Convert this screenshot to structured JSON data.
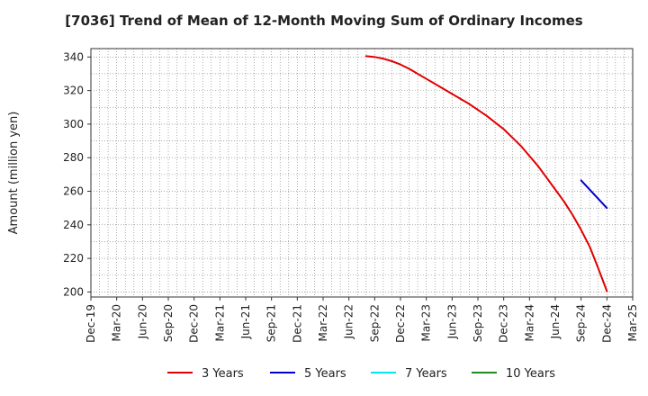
{
  "chart_data": {
    "type": "line",
    "title": "[7036]  Trend of Mean of 12-Month Moving Sum of Ordinary Incomes",
    "ylabel": "Amount (million yen)",
    "xlabel": "",
    "x_ticks": [
      "Dec-19",
      "Mar-20",
      "Jun-20",
      "Sep-20",
      "Dec-20",
      "Mar-21",
      "Jun-21",
      "Sep-21",
      "Dec-21",
      "Mar-22",
      "Jun-22",
      "Sep-22",
      "Dec-22",
      "Mar-23",
      "Jun-23",
      "Sep-23",
      "Dec-23",
      "Mar-24",
      "Jun-24",
      "Sep-24",
      "Dec-24",
      "Mar-25"
    ],
    "y_ticks": [
      200,
      220,
      240,
      260,
      280,
      300,
      320,
      340
    ],
    "ylim": [
      197,
      345
    ],
    "grid": true,
    "legend_position": "bottom",
    "series": [
      {
        "name": "3 Years",
        "color": "#e00000",
        "points": [
          [
            "Aug-22",
            340.5
          ],
          [
            "Sep-22",
            340.0
          ],
          [
            "Oct-22",
            339.0
          ],
          [
            "Nov-22",
            337.5
          ],
          [
            "Dec-22",
            335.5
          ],
          [
            "Jan-23",
            333.0
          ],
          [
            "Feb-23",
            330.0
          ],
          [
            "Mar-23",
            327.0
          ],
          [
            "Apr-23",
            324.0
          ],
          [
            "May-23",
            321.0
          ],
          [
            "Jun-23",
            318.0
          ],
          [
            "Jul-23",
            315.0
          ],
          [
            "Aug-23",
            312.0
          ],
          [
            "Sep-23",
            308.5
          ],
          [
            "Oct-23",
            305.0
          ],
          [
            "Nov-23",
            301.0
          ],
          [
            "Dec-23",
            297.0
          ],
          [
            "Jan-24",
            292.0
          ],
          [
            "Feb-24",
            287.0
          ],
          [
            "Mar-24",
            281.0
          ],
          [
            "Apr-24",
            275.0
          ],
          [
            "May-24",
            268.0
          ],
          [
            "Jun-24",
            261.0
          ],
          [
            "Jul-24",
            254.0
          ],
          [
            "Aug-24",
            246.0
          ],
          [
            "Sep-24",
            237.0
          ],
          [
            "Oct-24",
            227.0
          ],
          [
            "Nov-24",
            214.0
          ],
          [
            "Dec-24",
            200.5
          ]
        ]
      },
      {
        "name": "5 Years",
        "color": "#0000cc",
        "points": [
          [
            "Sep-24",
            266.5
          ],
          [
            "Oct-24",
            261.0
          ],
          [
            "Nov-24",
            255.5
          ],
          [
            "Dec-24",
            250.0
          ]
        ]
      },
      {
        "name": "7 Years",
        "color": "#00e5ee",
        "points": []
      },
      {
        "name": "10 Years",
        "color": "#228b22",
        "points": []
      }
    ]
  }
}
